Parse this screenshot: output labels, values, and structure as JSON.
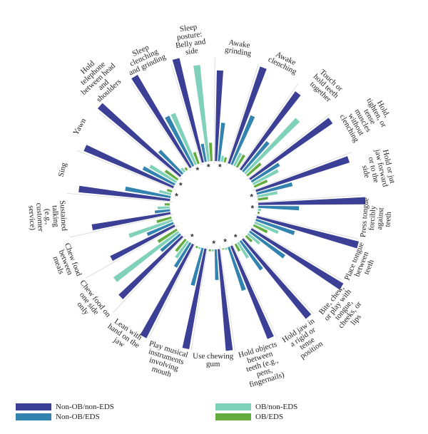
{
  "chart_data": {
    "type": "radial-bar",
    "max_value": 1,
    "series": [
      {
        "name": "Non-OB/non-EDS",
        "color": "#3b3f95"
      },
      {
        "name": "Non-OB/EDS",
        "color": "#3383b0"
      },
      {
        "name": "OB/non-EDS",
        "color": "#7fd1b9"
      },
      {
        "name": "OB/EDS",
        "color": "#63ad3e"
      }
    ],
    "categories": [
      {
        "label": "Awake grinding",
        "values": [
          0.89,
          0.38,
          0.06,
          0.05
        ],
        "sig": "*"
      },
      {
        "label": "Awake clenching",
        "values": [
          1.0,
          0.52,
          0.14,
          0.14
        ],
        "sig": ""
      },
      {
        "label": "Touch or hold teeth together",
        "values": [
          0.94,
          0.38,
          0.74,
          0.18
        ],
        "sig": ""
      },
      {
        "label": "Hold, tighten, or tense muscles without clenching",
        "values": [
          0.98,
          0.32,
          0.28,
          0.14
        ],
        "sig": ""
      },
      {
        "label": "Hold or jut jaw forward or to the side",
        "values": [
          0.96,
          0.36,
          0.2,
          0.1
        ],
        "sig": "*"
      },
      {
        "label": "Press tongue forcibly against teeth",
        "values": [
          1.05,
          0.4,
          0.03,
          0.02
        ],
        "sig": "*"
      },
      {
        "label": "Place tongue between teeth",
        "values": [
          1.03,
          0.4,
          0.25,
          0.15
        ],
        "sig": ""
      },
      {
        "label": "Bite, chew, or play with tongue, cheeks, or lips",
        "values": [
          1.05,
          0.42,
          0.15,
          0.08
        ],
        "sig": ""
      },
      {
        "label": "Hold jaw in a rigid or tense position",
        "values": [
          1.0,
          0.35,
          0.18,
          0.08
        ],
        "sig": "*"
      },
      {
        "label": "Hold objects between teeth (e.g., pens, fingernails)",
        "values": [
          0.98,
          0.45,
          0.02,
          0.01
        ],
        "sig": "*"
      },
      {
        "label": "Use chewing gum",
        "values": [
          1.0,
          0.3,
          0.02,
          0.02
        ],
        "sig": "*"
      },
      {
        "label": "Play musical instruments involving mouth",
        "values": [
          1.0,
          0.38,
          0.02,
          0.02
        ],
        "sig": ""
      },
      {
        "label": "Lean with hand on the jaw",
        "values": [
          1.03,
          0.28,
          0.2,
          0.15
        ],
        "sig": "*"
      },
      {
        "label": "Chew food on one side only",
        "values": [
          0.85,
          0.25,
          0.78,
          0.22
        ],
        "sig": ""
      },
      {
        "label": "Chew food between meals",
        "values": [
          0.7,
          0.28,
          0.45,
          0.15
        ],
        "sig": ""
      },
      {
        "label": "Sustained talking (e.g., customer service)",
        "values": [
          0.78,
          0.15,
          0.12,
          0.05
        ],
        "sig": ""
      },
      {
        "label": "Sing",
        "values": [
          0.9,
          0.45,
          0.12,
          0.05
        ],
        "sig": "*"
      },
      {
        "label": "Yawn",
        "values": [
          0.95,
          0.35,
          0.3,
          0.15
        ],
        "sig": "*"
      },
      {
        "label": "Hold telephone between head and shoulders",
        "values": [
          1.05,
          0.32,
          0.05,
          0.03
        ],
        "sig": ""
      },
      {
        "label": "Sleep clenching and grinding",
        "values": [
          1.05,
          0.55,
          0.55,
          0.12
        ],
        "sig": "*"
      },
      {
        "label": "Sleep posture: Belly and side",
        "values": [
          1.05,
          0.18,
          0.95,
          0.18
        ],
        "sig": "*"
      }
    ]
  },
  "legend": {
    "items": [
      {
        "label": "Non-OB/non-EDS",
        "color": "#3b3f95"
      },
      {
        "label": "Non-OB/EDS",
        "color": "#3383b0"
      },
      {
        "label": "OB/non-EDS",
        "color": "#7fd1b9"
      },
      {
        "label": "OB/EDS",
        "color": "#63ad3e"
      }
    ]
  }
}
